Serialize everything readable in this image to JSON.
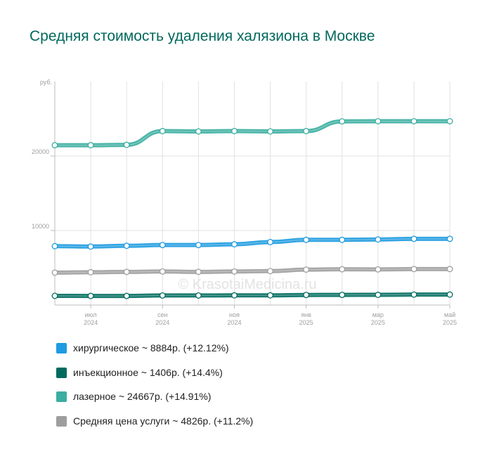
{
  "title": "Средняя стоимость удаления халязиона в Москве",
  "watermark": "© KrasotaiMedicina.ru",
  "chart_data": {
    "type": "line",
    "y_unit_label": "руб.",
    "ylim": [
      0,
      30000
    ],
    "y_ticks": [
      {
        "value": 10000,
        "label": "10000"
      },
      {
        "value": 20000,
        "label": "20000"
      }
    ],
    "x_count": 12,
    "x_ticks": [
      {
        "index": 1,
        "month": "июл",
        "year": "2024"
      },
      {
        "index": 3,
        "month": "сен",
        "year": "2024"
      },
      {
        "index": 5,
        "month": "ноя",
        "year": "2024"
      },
      {
        "index": 7,
        "month": "янв",
        "year": "2025"
      },
      {
        "index": 9,
        "month": "мар",
        "year": "2025"
      },
      {
        "index": 11,
        "month": "май",
        "year": "2025"
      }
    ],
    "grid": true,
    "series": [
      {
        "name": "хирургическое",
        "color": "#1e9be0",
        "values": [
          7900,
          7850,
          7950,
          8050,
          8050,
          8150,
          8450,
          8750,
          8750,
          8800,
          8884,
          8884
        ]
      },
      {
        "name": "инъекционное",
        "color": "#006b5e",
        "values": [
          1230,
          1220,
          1220,
          1280,
          1280,
          1300,
          1300,
          1350,
          1360,
          1370,
          1400,
          1406
        ]
      },
      {
        "name": "лазерное",
        "color": "#3aaea0",
        "values": [
          21450,
          21450,
          21500,
          23350,
          23300,
          23350,
          23300,
          23350,
          24650,
          24667,
          24667,
          24667
        ]
      },
      {
        "name": "Средняя цена услуги",
        "color": "#9e9e9e",
        "values": [
          4350,
          4400,
          4450,
          4500,
          4450,
          4500,
          4550,
          4750,
          4800,
          4780,
          4826,
          4826
        ]
      }
    ]
  },
  "legend": [
    {
      "text": "хирургическое ~ 8884р. (+12.12%)",
      "color": "#1e9be0"
    },
    {
      "text": "инъекционное ~ 1406р. (+14.4%)",
      "color": "#006b5e"
    },
    {
      "text": "лазерное ~ 24667р. (+14.91%)",
      "color": "#3aaea0"
    },
    {
      "text": "Средняя цена услуги ~ 4826р. (+11.2%)",
      "color": "#9e9e9e"
    }
  ]
}
